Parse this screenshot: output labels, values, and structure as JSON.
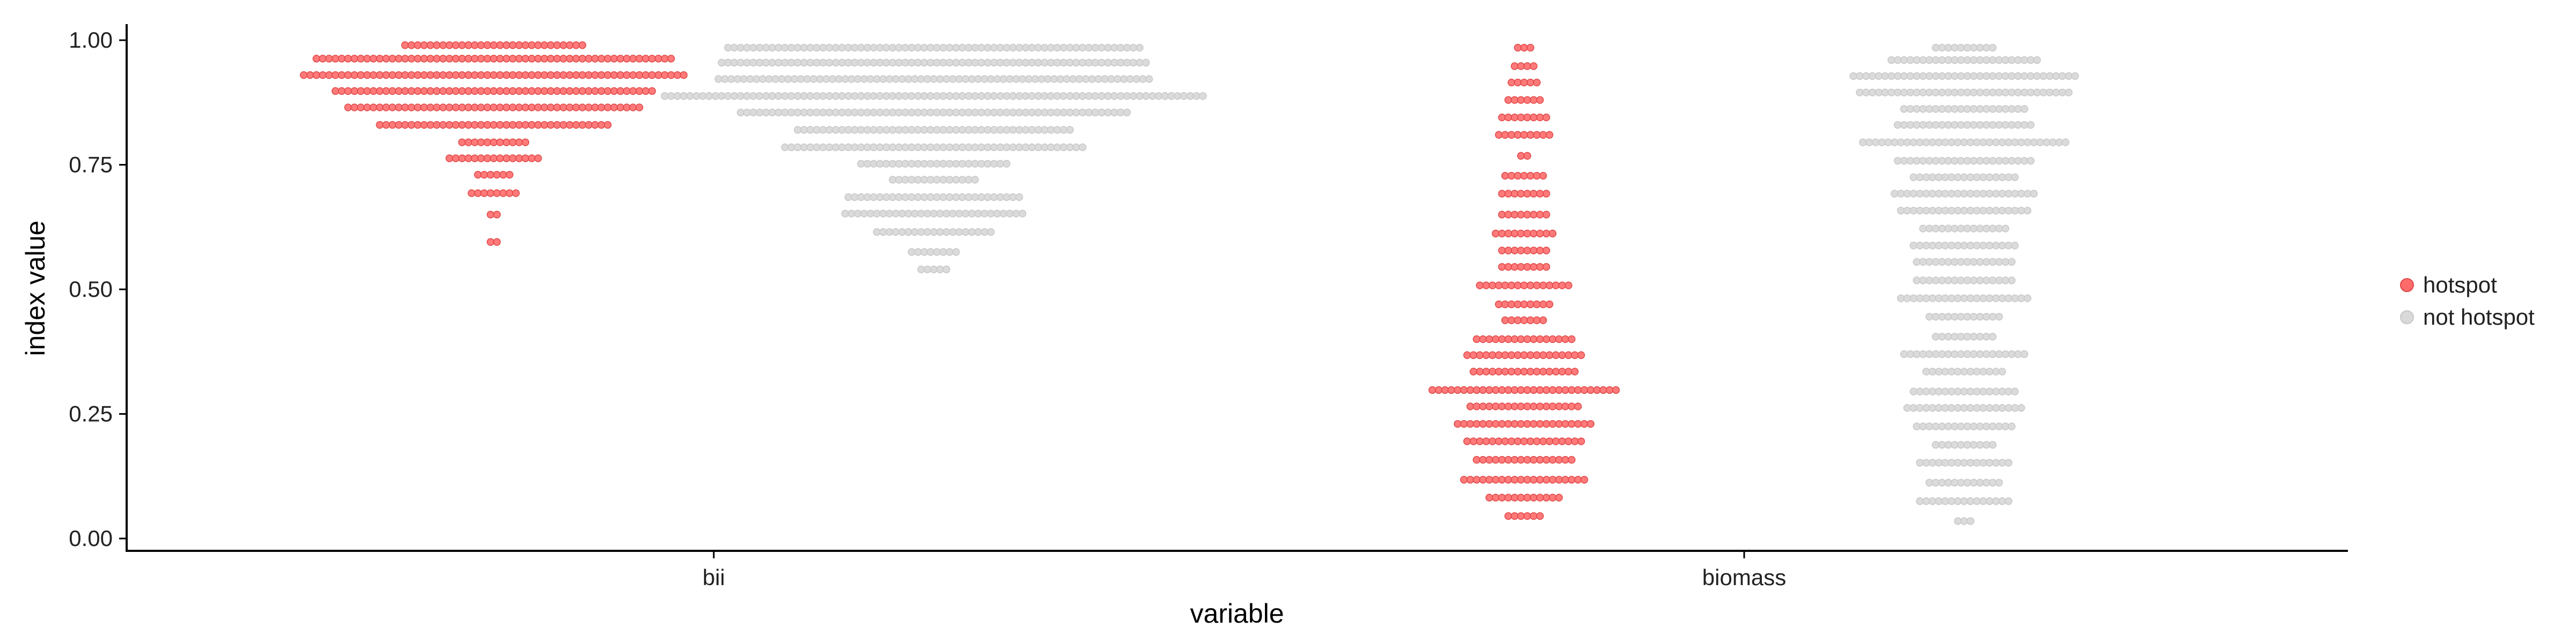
{
  "chart_data": {
    "type": "dotplot",
    "xlabel": "variable",
    "ylabel": "index value",
    "categories": [
      "bii",
      "biomass"
    ],
    "ylim": [
      0,
      1
    ],
    "yticks": [
      "0.00",
      "0.25",
      "0.50",
      "0.75",
      "1.00"
    ],
    "legend": {
      "position": "right",
      "entries": [
        {
          "label": "hotspot",
          "color": "#FF6B6B"
        },
        {
          "label": "not hotspot",
          "color": "#D9D9D9"
        }
      ]
    },
    "series": [
      {
        "name": "hotspot",
        "category": "bii",
        "color": "#FF6B6B",
        "bins": [
          {
            "y": 0.99,
            "count": 29
          },
          {
            "y": 0.963,
            "count": 57
          },
          {
            "y": 0.93,
            "count": 61
          },
          {
            "y": 0.898,
            "count": 51
          },
          {
            "y": 0.865,
            "count": 47
          },
          {
            "y": 0.83,
            "count": 37
          },
          {
            "y": 0.795,
            "count": 11
          },
          {
            "y": 0.763,
            "count": 15
          },
          {
            "y": 0.73,
            "count": 6
          },
          {
            "y": 0.693,
            "count": 8
          },
          {
            "y": 0.65,
            "count": 2
          },
          {
            "y": 0.595,
            "count": 2
          }
        ]
      },
      {
        "name": "not hotspot",
        "category": "bii",
        "color": "#D9D9D9",
        "bins": [
          {
            "y": 0.985,
            "count": 66
          },
          {
            "y": 0.955,
            "count": 68
          },
          {
            "y": 0.922,
            "count": 69
          },
          {
            "y": 0.888,
            "count": 86
          },
          {
            "y": 0.855,
            "count": 62
          },
          {
            "y": 0.82,
            "count": 44
          },
          {
            "y": 0.785,
            "count": 48
          },
          {
            "y": 0.752,
            "count": 24
          },
          {
            "y": 0.72,
            "count": 14
          },
          {
            "y": 0.685,
            "count": 28
          },
          {
            "y": 0.652,
            "count": 29
          },
          {
            "y": 0.615,
            "count": 19
          },
          {
            "y": 0.575,
            "count": 8
          },
          {
            "y": 0.54,
            "count": 5
          }
        ]
      },
      {
        "name": "hotspot",
        "category": "biomass",
        "color": "#FF6B6B",
        "bins": [
          {
            "y": 0.985,
            "count": 3
          },
          {
            "y": 0.948,
            "count": 4
          },
          {
            "y": 0.915,
            "count": 5
          },
          {
            "y": 0.88,
            "count": 6
          },
          {
            "y": 0.845,
            "count": 8
          },
          {
            "y": 0.81,
            "count": 9
          },
          {
            "y": 0.768,
            "count": 2
          },
          {
            "y": 0.728,
            "count": 7
          },
          {
            "y": 0.692,
            "count": 8
          },
          {
            "y": 0.65,
            "count": 8
          },
          {
            "y": 0.612,
            "count": 10
          },
          {
            "y": 0.578,
            "count": 8
          },
          {
            "y": 0.545,
            "count": 8
          },
          {
            "y": 0.508,
            "count": 15
          },
          {
            "y": 0.47,
            "count": 9
          },
          {
            "y": 0.438,
            "count": 7
          },
          {
            "y": 0.4,
            "count": 16
          },
          {
            "y": 0.368,
            "count": 19
          },
          {
            "y": 0.335,
            "count": 17
          },
          {
            "y": 0.298,
            "count": 30
          },
          {
            "y": 0.265,
            "count": 18
          },
          {
            "y": 0.23,
            "count": 22
          },
          {
            "y": 0.195,
            "count": 19
          },
          {
            "y": 0.158,
            "count": 16
          },
          {
            "y": 0.118,
            "count": 20
          },
          {
            "y": 0.082,
            "count": 12
          },
          {
            "y": 0.045,
            "count": 6
          }
        ]
      },
      {
        "name": "not hotspot",
        "category": "biomass",
        "color": "#D9D9D9",
        "bins": [
          {
            "y": 0.985,
            "count": 10
          },
          {
            "y": 0.96,
            "count": 24
          },
          {
            "y": 0.928,
            "count": 36
          },
          {
            "y": 0.895,
            "count": 34
          },
          {
            "y": 0.862,
            "count": 20
          },
          {
            "y": 0.83,
            "count": 22
          },
          {
            "y": 0.795,
            "count": 33
          },
          {
            "y": 0.758,
            "count": 22
          },
          {
            "y": 0.725,
            "count": 17
          },
          {
            "y": 0.692,
            "count": 23
          },
          {
            "y": 0.658,
            "count": 21
          },
          {
            "y": 0.622,
            "count": 14
          },
          {
            "y": 0.588,
            "count": 17
          },
          {
            "y": 0.555,
            "count": 16
          },
          {
            "y": 0.518,
            "count": 16
          },
          {
            "y": 0.482,
            "count": 21
          },
          {
            "y": 0.445,
            "count": 12
          },
          {
            "y": 0.405,
            "count": 10
          },
          {
            "y": 0.37,
            "count": 20
          },
          {
            "y": 0.335,
            "count": 13
          },
          {
            "y": 0.295,
            "count": 17
          },
          {
            "y": 0.262,
            "count": 19
          },
          {
            "y": 0.225,
            "count": 16
          },
          {
            "y": 0.188,
            "count": 10
          },
          {
            "y": 0.152,
            "count": 15
          },
          {
            "y": 0.112,
            "count": 12
          },
          {
            "y": 0.075,
            "count": 15
          },
          {
            "y": 0.035,
            "count": 3
          }
        ]
      }
    ]
  }
}
